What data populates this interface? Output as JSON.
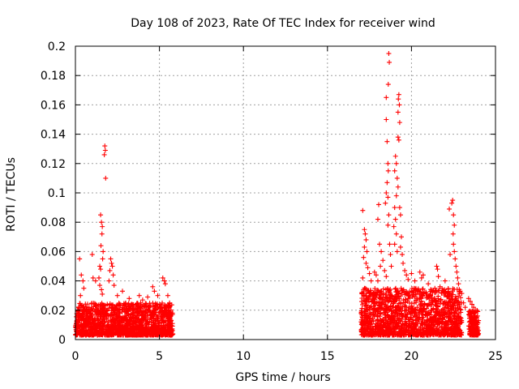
{
  "chart_data": {
    "type": "scatter",
    "title": "Day 108 of 2023, Rate Of TEC Index for receiver wind",
    "xlabel": "GPS time / hours",
    "ylabel": "ROTI / TECUs",
    "xlim": [
      0,
      25
    ],
    "ylim": [
      0,
      0.2
    ],
    "x_ticks": [
      "0",
      "5",
      "10",
      "15",
      "20",
      "25"
    ],
    "y_ticks": [
      "0",
      "0.02",
      "0.04",
      "0.06",
      "0.08",
      "0.1",
      "0.12",
      "0.14",
      "0.16",
      "0.18",
      "0.2"
    ],
    "grid": true,
    "marker": "+",
    "color": "#ff0000",
    "points": [
      [
        0.25,
        0.055
      ],
      [
        0.35,
        0.044
      ],
      [
        0.45,
        0.04
      ],
      [
        0.5,
        0.035
      ],
      [
        0.3,
        0.03
      ],
      [
        1.0,
        0.058
      ],
      [
        1.05,
        0.042
      ],
      [
        1.2,
        0.04
      ],
      [
        1.5,
        0.085
      ],
      [
        1.55,
        0.08
      ],
      [
        1.6,
        0.077
      ],
      [
        1.58,
        0.072
      ],
      [
        1.52,
        0.064
      ],
      [
        1.65,
        0.06
      ],
      [
        1.62,
        0.055
      ],
      [
        1.45,
        0.05
      ],
      [
        1.5,
        0.048
      ],
      [
        1.4,
        0.042
      ],
      [
        1.45,
        0.037
      ],
      [
        1.55,
        0.034
      ],
      [
        1.6,
        0.031
      ],
      [
        1.75,
        0.132
      ],
      [
        1.78,
        0.129
      ],
      [
        1.72,
        0.126
      ],
      [
        1.8,
        0.11
      ],
      [
        2.1,
        0.055
      ],
      [
        2.15,
        0.052
      ],
      [
        2.2,
        0.05
      ],
      [
        2.05,
        0.047
      ],
      [
        2.25,
        0.044
      ],
      [
        2.0,
        0.04
      ],
      [
        2.3,
        0.037
      ],
      [
        2.5,
        0.03
      ],
      [
        2.8,
        0.033
      ],
      [
        3.2,
        0.028
      ],
      [
        3.8,
        0.03
      ],
      [
        4.0,
        0.027
      ],
      [
        4.3,
        0.029
      ],
      [
        4.6,
        0.036
      ],
      [
        4.7,
        0.033
      ],
      [
        4.9,
        0.03
      ],
      [
        5.2,
        0.042
      ],
      [
        5.3,
        0.04
      ],
      [
        5.35,
        0.038
      ],
      [
        5.5,
        0.03
      ],
      [
        5.6,
        0.025
      ],
      [
        17.1,
        0.088
      ],
      [
        17.2,
        0.075
      ],
      [
        17.25,
        0.072
      ],
      [
        17.3,
        0.068
      ],
      [
        17.2,
        0.063
      ],
      [
        17.35,
        0.06
      ],
      [
        17.15,
        0.056
      ],
      [
        17.3,
        0.052
      ],
      [
        17.4,
        0.049
      ],
      [
        17.5,
        0.045
      ],
      [
        17.1,
        0.042
      ],
      [
        17.6,
        0.04
      ],
      [
        17.8,
        0.046
      ],
      [
        17.9,
        0.044
      ],
      [
        18.0,
        0.04
      ],
      [
        18.1,
        0.065
      ],
      [
        18.2,
        0.06
      ],
      [
        18.3,
        0.054
      ],
      [
        18.15,
        0.05
      ],
      [
        18.4,
        0.047
      ],
      [
        18.5,
        0.043
      ],
      [
        18.0,
        0.082
      ],
      [
        18.05,
        0.092
      ],
      [
        18.5,
        0.165
      ],
      [
        18.5,
        0.15
      ],
      [
        18.55,
        0.135
      ],
      [
        18.6,
        0.12
      ],
      [
        18.62,
        0.115
      ],
      [
        18.55,
        0.107
      ],
      [
        18.5,
        0.1
      ],
      [
        18.6,
        0.097
      ],
      [
        18.45,
        0.093
      ],
      [
        18.65,
        0.085
      ],
      [
        18.6,
        0.078
      ],
      [
        18.65,
        0.195
      ],
      [
        18.68,
        0.189
      ],
      [
        18.62,
        0.174
      ],
      [
        18.7,
        0.065
      ],
      [
        18.75,
        0.058
      ],
      [
        18.8,
        0.05
      ],
      [
        19.0,
        0.09
      ],
      [
        19.05,
        0.082
      ],
      [
        18.95,
        0.077
      ],
      [
        19.1,
        0.072
      ],
      [
        19.0,
        0.065
      ],
      [
        19.15,
        0.06
      ],
      [
        19.05,
        0.125
      ],
      [
        19.1,
        0.12
      ],
      [
        19.0,
        0.115
      ],
      [
        19.15,
        0.11
      ],
      [
        19.2,
        0.104
      ],
      [
        19.1,
        0.098
      ],
      [
        19.25,
        0.167
      ],
      [
        19.22,
        0.164
      ],
      [
        19.28,
        0.16
      ],
      [
        19.2,
        0.155
      ],
      [
        19.3,
        0.148
      ],
      [
        19.2,
        0.138
      ],
      [
        19.25,
        0.136
      ],
      [
        19.3,
        0.09
      ],
      [
        19.35,
        0.085
      ],
      [
        19.4,
        0.07
      ],
      [
        19.35,
        0.063
      ],
      [
        19.45,
        0.058
      ],
      [
        19.5,
        0.052
      ],
      [
        19.6,
        0.047
      ],
      [
        19.7,
        0.044
      ],
      [
        19.8,
        0.041
      ],
      [
        20.0,
        0.045
      ],
      [
        20.2,
        0.04
      ],
      [
        20.5,
        0.046
      ],
      [
        20.6,
        0.042
      ],
      [
        20.7,
        0.044
      ],
      [
        21.0,
        0.038
      ],
      [
        21.5,
        0.05
      ],
      [
        21.55,
        0.048
      ],
      [
        21.6,
        0.043
      ],
      [
        21.7,
        0.036
      ],
      [
        22.0,
        0.04
      ],
      [
        22.25,
        0.089
      ],
      [
        22.4,
        0.093
      ],
      [
        22.45,
        0.095
      ],
      [
        22.5,
        0.085
      ],
      [
        22.55,
        0.078
      ],
      [
        22.48,
        0.072
      ],
      [
        22.5,
        0.065
      ],
      [
        22.55,
        0.06
      ],
      [
        22.3,
        0.058
      ],
      [
        22.6,
        0.055
      ],
      [
        22.65,
        0.05
      ],
      [
        22.7,
        0.046
      ],
      [
        22.75,
        0.042
      ],
      [
        22.8,
        0.038
      ],
      [
        22.9,
        0.033
      ],
      [
        23.1,
        0.025
      ],
      [
        23.2,
        0.022
      ],
      [
        23.4,
        0.028
      ],
      [
        23.5,
        0.026
      ],
      [
        23.6,
        0.024
      ],
      [
        23.7,
        0.022
      ],
      [
        23.8,
        0.02
      ]
    ],
    "dense_clusters": [
      {
        "x_range": [
          0,
          5.8
        ],
        "y_range": [
          0.003,
          0.025
        ]
      },
      {
        "x_range": [
          17.0,
          23.0
        ],
        "y_range": [
          0.003,
          0.035
        ]
      },
      {
        "x_range": [
          23.4,
          24.0
        ],
        "y_range": [
          0.003,
          0.02
        ]
      }
    ]
  }
}
